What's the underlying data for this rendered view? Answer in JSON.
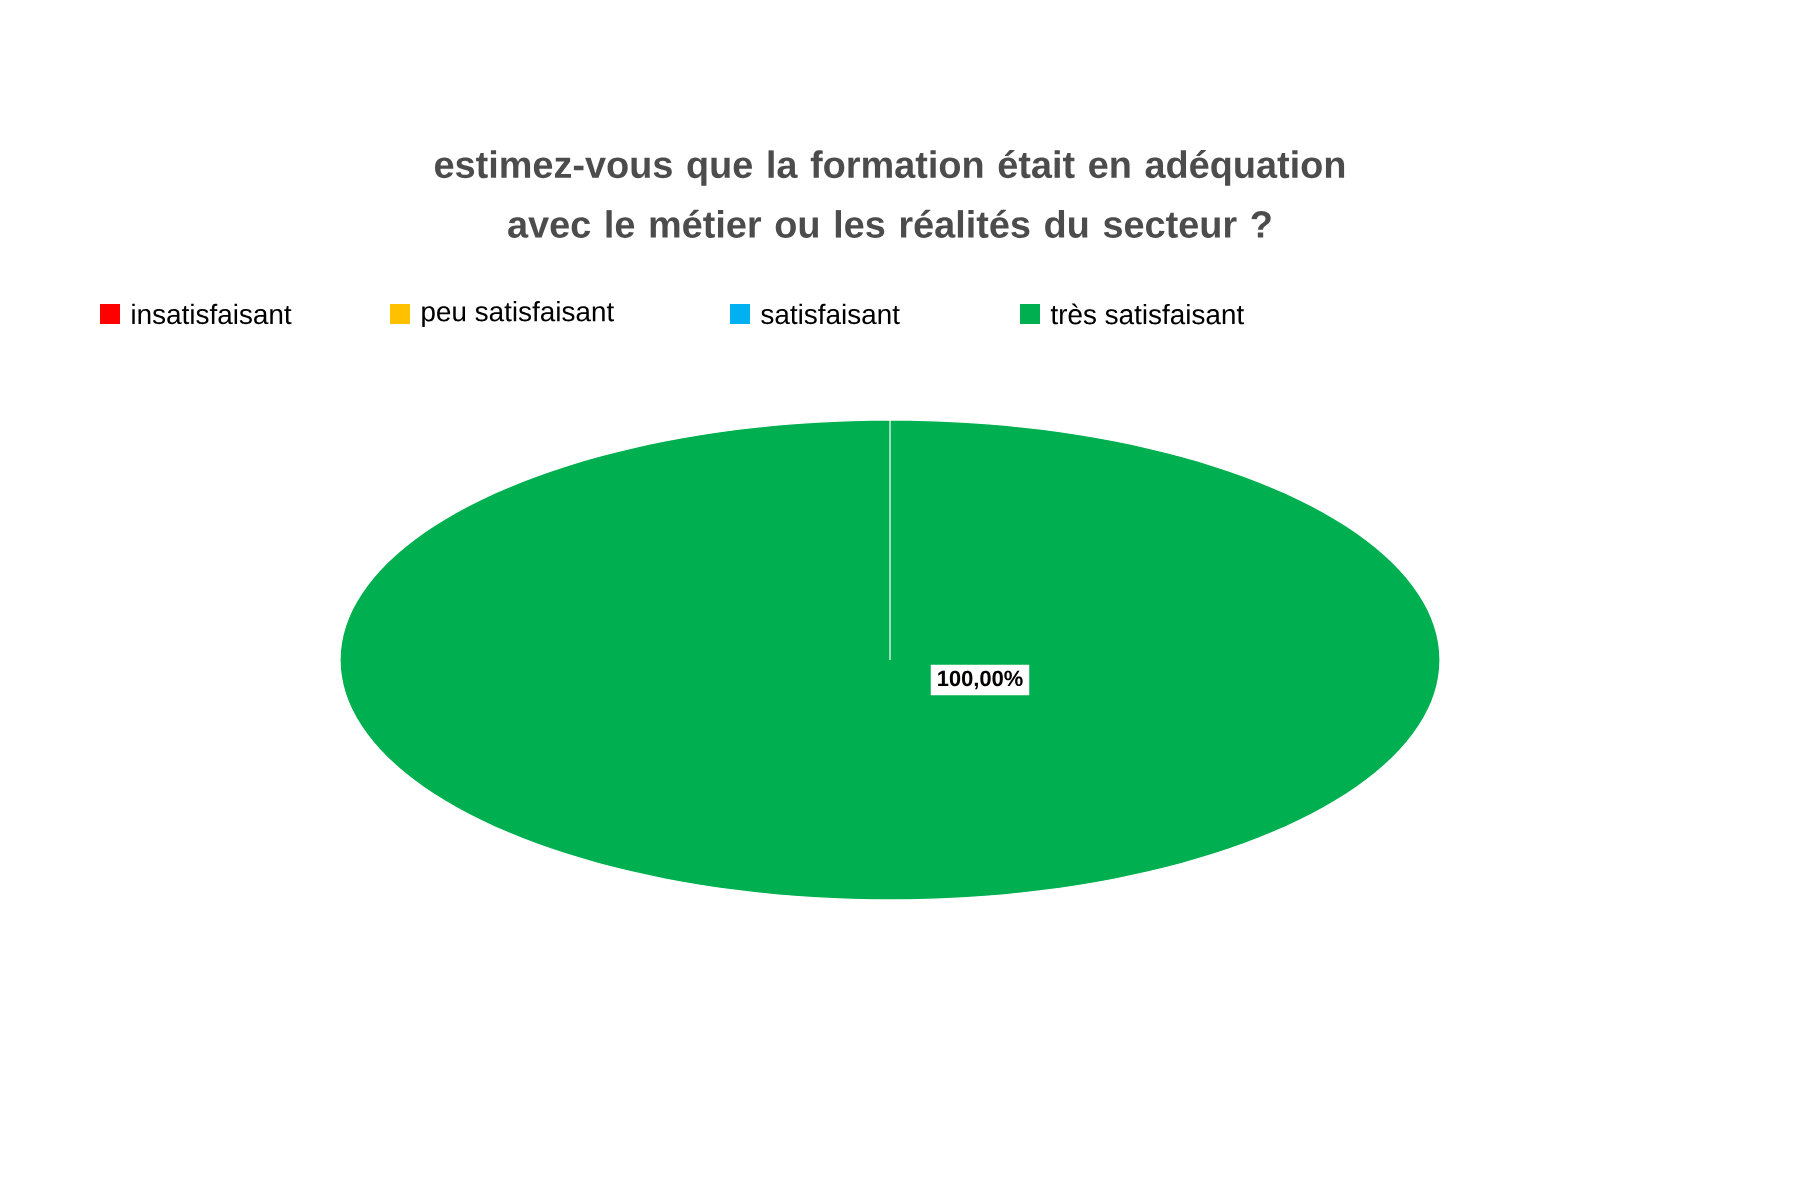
{
  "chart_data": {
    "type": "pie",
    "title": "estimez-vous que la formation était en adéquation avec le métier ou les réalités du secteur ?",
    "categories": [
      "insatisfaisant",
      "peu satisfaisant",
      "satisfaisant",
      "très satisfaisant"
    ],
    "values": [
      0,
      0,
      0,
      100
    ],
    "colors": [
      "#ff0000",
      "#ffc000",
      "#00b0f0",
      "#00b050"
    ],
    "value_labels": [
      null,
      null,
      null,
      "100,00%"
    ],
    "legend": "top"
  }
}
